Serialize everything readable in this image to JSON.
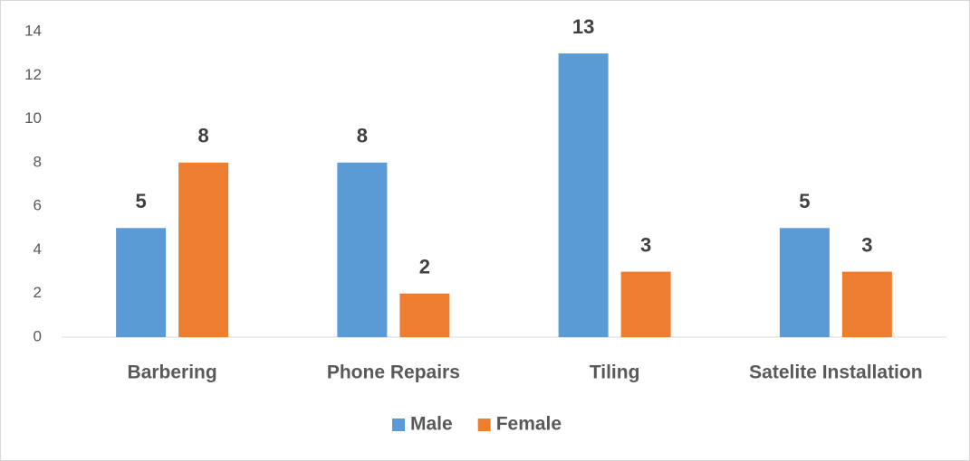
{
  "chart_data": {
    "type": "bar",
    "categories": [
      "Barbering",
      "Phone Repairs",
      "Tiling",
      "Satelite Installation"
    ],
    "series": [
      {
        "name": "Male",
        "color": "#5b9bd5",
        "values": [
          5,
          8,
          13,
          5
        ]
      },
      {
        "name": "Female",
        "color": "#ed7d31",
        "values": [
          8,
          2,
          3,
          3
        ]
      }
    ],
    "ylim": [
      0,
      14
    ],
    "yticks": [
      0,
      2,
      4,
      6,
      8,
      10,
      12,
      14
    ],
    "grid": false,
    "legend": "bottom"
  }
}
